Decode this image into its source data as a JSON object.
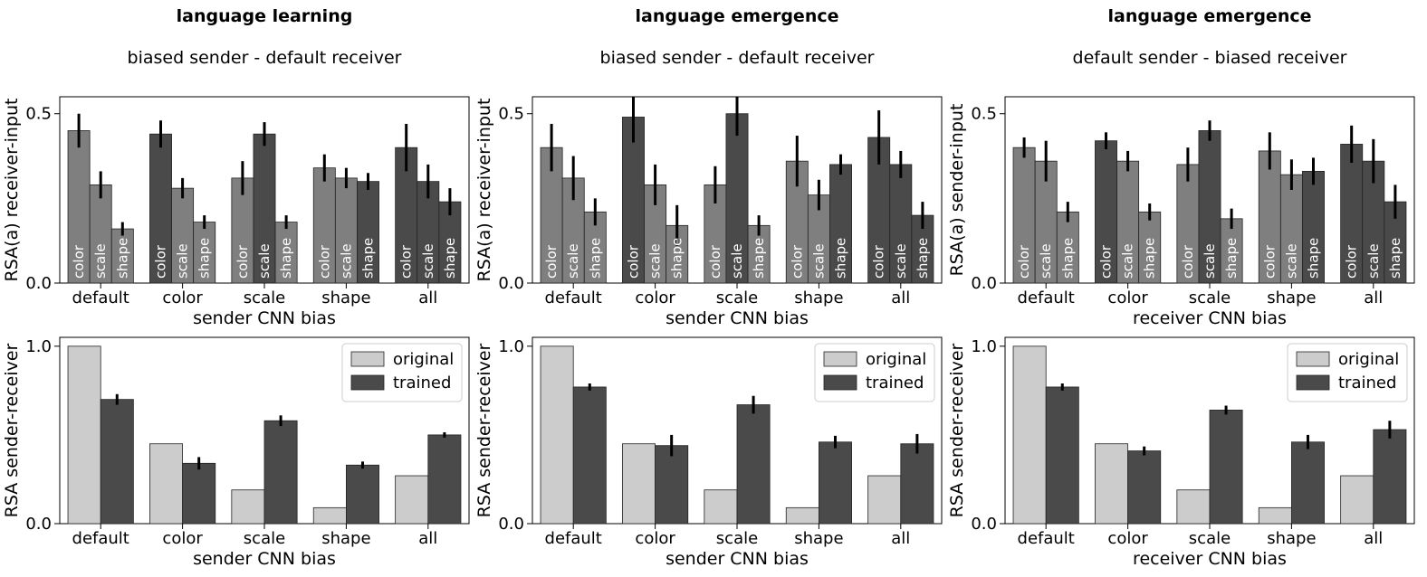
{
  "columns": [
    {
      "title": "language learning",
      "subtitle": "biased sender - default receiver"
    },
    {
      "title": "language emergence",
      "subtitle": "biased sender - default receiver"
    },
    {
      "title": "language emergence",
      "subtitle": "default sender - biased receiver"
    }
  ],
  "colors": {
    "color_bias": "#4a4a4a",
    "other": "#7f7f7f",
    "original": "#cccccc",
    "trained": "#4a4a4a",
    "error": "#000000"
  },
  "chart_data": [
    {
      "type": "bar",
      "panel": "top-left",
      "categories": [
        "default",
        "color",
        "scale",
        "shape",
        "all"
      ],
      "bar_labels": [
        "color",
        "scale",
        "shape"
      ],
      "series": [
        {
          "name": "color",
          "values": [
            0.45,
            0.44,
            0.31,
            0.34,
            0.4
          ],
          "errors": [
            0.05,
            0.04,
            0.05,
            0.04,
            0.07
          ]
        },
        {
          "name": "scale",
          "values": [
            0.29,
            0.28,
            0.44,
            0.31,
            0.3
          ],
          "errors": [
            0.04,
            0.03,
            0.035,
            0.03,
            0.05
          ]
        },
        {
          "name": "shape",
          "values": [
            0.16,
            0.18,
            0.18,
            0.3,
            0.24
          ],
          "errors": [
            0.02,
            0.02,
            0.02,
            0.025,
            0.04
          ]
        }
      ],
      "xlabel": "sender CNN bias",
      "ylabel": "RSA(a) receiver-input",
      "ylim": [
        0,
        0.55
      ],
      "yticks": [
        "0.0",
        "0.5"
      ],
      "ytick_values": [
        0,
        0.5
      ]
    },
    {
      "type": "bar",
      "panel": "top-middle",
      "categories": [
        "default",
        "color",
        "scale",
        "shape",
        "all"
      ],
      "bar_labels": [
        "color",
        "scale",
        "shape"
      ],
      "series": [
        {
          "name": "color",
          "values": [
            0.4,
            0.49,
            0.29,
            0.36,
            0.43
          ],
          "errors": [
            0.07,
            0.075,
            0.055,
            0.075,
            0.08
          ]
        },
        {
          "name": "scale",
          "values": [
            0.31,
            0.29,
            0.5,
            0.26,
            0.35
          ],
          "errors": [
            0.065,
            0.06,
            0.065,
            0.045,
            0.04
          ]
        },
        {
          "name": "shape",
          "values": [
            0.21,
            0.17,
            0.17,
            0.35,
            0.2
          ],
          "errors": [
            0.04,
            0.06,
            0.03,
            0.03,
            0.04
          ]
        }
      ],
      "xlabel": "sender CNN bias",
      "ylabel": "RSA(a) receiver-input",
      "ylim": [
        0,
        0.55
      ],
      "yticks": [
        "0.0",
        "0.5"
      ],
      "ytick_values": [
        0,
        0.5
      ]
    },
    {
      "type": "bar",
      "panel": "top-right",
      "categories": [
        "default",
        "color",
        "scale",
        "shape",
        "all"
      ],
      "bar_labels": [
        "color",
        "scale",
        "shape"
      ],
      "series": [
        {
          "name": "color",
          "values": [
            0.4,
            0.42,
            0.35,
            0.39,
            0.41
          ],
          "errors": [
            0.03,
            0.025,
            0.05,
            0.055,
            0.055
          ]
        },
        {
          "name": "scale",
          "values": [
            0.36,
            0.36,
            0.45,
            0.32,
            0.36
          ],
          "errors": [
            0.06,
            0.03,
            0.03,
            0.045,
            0.065
          ]
        },
        {
          "name": "shape",
          "values": [
            0.21,
            0.21,
            0.19,
            0.33,
            0.24
          ],
          "errors": [
            0.03,
            0.025,
            0.03,
            0.04,
            0.05
          ]
        }
      ],
      "xlabel": "receiver CNN bias",
      "ylabel": "RSA(a) sender-input",
      "ylim": [
        0,
        0.55
      ],
      "yticks": [
        "0.0",
        "0.5"
      ],
      "ytick_values": [
        0,
        0.5
      ]
    },
    {
      "type": "bar",
      "panel": "bottom-left",
      "categories": [
        "default",
        "color",
        "scale",
        "shape",
        "all"
      ],
      "series": [
        {
          "name": "original",
          "values": [
            1.0,
            0.45,
            0.19,
            0.09,
            0.27
          ],
          "errors": [
            0,
            0,
            0,
            0,
            0
          ]
        },
        {
          "name": "trained",
          "values": [
            0.7,
            0.34,
            0.58,
            0.33,
            0.5
          ],
          "errors": [
            0.03,
            0.035,
            0.03,
            0.02,
            0.015
          ]
        }
      ],
      "legend": [
        "original",
        "trained"
      ],
      "legend_position": "top-right",
      "xlabel": "sender CNN bias",
      "ylabel": "RSA sender-receiver",
      "ylim": [
        0,
        1.05
      ],
      "yticks": [
        "0.0",
        "1.0"
      ],
      "ytick_values": [
        0,
        1.0
      ]
    },
    {
      "type": "bar",
      "panel": "bottom-middle",
      "categories": [
        "default",
        "color",
        "scale",
        "shape",
        "all"
      ],
      "series": [
        {
          "name": "original",
          "values": [
            1.0,
            0.45,
            0.19,
            0.09,
            0.27
          ],
          "errors": [
            0,
            0,
            0,
            0,
            0
          ]
        },
        {
          "name": "trained",
          "values": [
            0.77,
            0.44,
            0.67,
            0.46,
            0.45
          ],
          "errors": [
            0.02,
            0.06,
            0.05,
            0.035,
            0.055
          ]
        }
      ],
      "legend": [
        "original",
        "trained"
      ],
      "legend_position": "top-right",
      "xlabel": "sender CNN bias",
      "ylabel": "RSA sender-receiver",
      "ylim": [
        0,
        1.05
      ],
      "yticks": [
        "0.0",
        "1.0"
      ],
      "ytick_values": [
        0,
        1.0
      ]
    },
    {
      "type": "bar",
      "panel": "bottom-right",
      "categories": [
        "default",
        "color",
        "scale",
        "shape",
        "all"
      ],
      "series": [
        {
          "name": "original",
          "values": [
            1.0,
            0.45,
            0.19,
            0.09,
            0.27
          ],
          "errors": [
            0,
            0,
            0,
            0,
            0
          ]
        },
        {
          "name": "trained",
          "values": [
            0.77,
            0.41,
            0.64,
            0.46,
            0.53
          ],
          "errors": [
            0.02,
            0.025,
            0.025,
            0.04,
            0.05
          ]
        }
      ],
      "legend": [
        "original",
        "trained"
      ],
      "legend_position": "top-right",
      "xlabel": "receiver CNN bias",
      "ylabel": "RSA sender-receiver",
      "ylim": [
        0,
        1.05
      ],
      "yticks": [
        "0.0",
        "1.0"
      ],
      "ytick_values": [
        0,
        1.0
      ]
    }
  ]
}
